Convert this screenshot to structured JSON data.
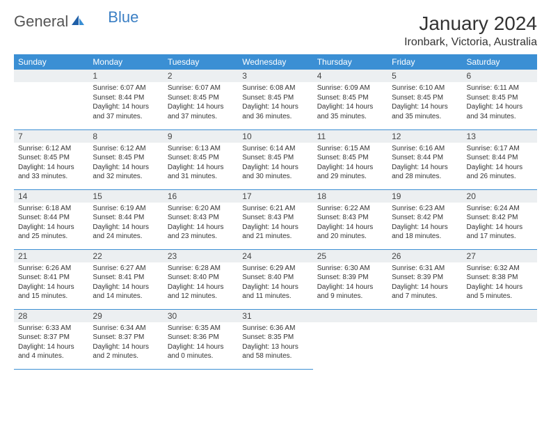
{
  "logo": {
    "general": "General",
    "blue": "Blue"
  },
  "title": "January 2024",
  "location": "Ironbark, Victoria, Australia",
  "colors": {
    "header_bg": "#3b8fd4",
    "header_text": "#ffffff",
    "daynum_bg": "#eceff1",
    "border": "#3b8fd4",
    "logo_blue": "#3b7fc4"
  },
  "weekdays": [
    "Sunday",
    "Monday",
    "Tuesday",
    "Wednesday",
    "Thursday",
    "Friday",
    "Saturday"
  ],
  "weeks": [
    [
      null,
      {
        "n": "1",
        "sr": "Sunrise: 6:07 AM",
        "ss": "Sunset: 8:44 PM",
        "dl": "Daylight: 14 hours and 37 minutes."
      },
      {
        "n": "2",
        "sr": "Sunrise: 6:07 AM",
        "ss": "Sunset: 8:45 PM",
        "dl": "Daylight: 14 hours and 37 minutes."
      },
      {
        "n": "3",
        "sr": "Sunrise: 6:08 AM",
        "ss": "Sunset: 8:45 PM",
        "dl": "Daylight: 14 hours and 36 minutes."
      },
      {
        "n": "4",
        "sr": "Sunrise: 6:09 AM",
        "ss": "Sunset: 8:45 PM",
        "dl": "Daylight: 14 hours and 35 minutes."
      },
      {
        "n": "5",
        "sr": "Sunrise: 6:10 AM",
        "ss": "Sunset: 8:45 PM",
        "dl": "Daylight: 14 hours and 35 minutes."
      },
      {
        "n": "6",
        "sr": "Sunrise: 6:11 AM",
        "ss": "Sunset: 8:45 PM",
        "dl": "Daylight: 14 hours and 34 minutes."
      }
    ],
    [
      {
        "n": "7",
        "sr": "Sunrise: 6:12 AM",
        "ss": "Sunset: 8:45 PM",
        "dl": "Daylight: 14 hours and 33 minutes."
      },
      {
        "n": "8",
        "sr": "Sunrise: 6:12 AM",
        "ss": "Sunset: 8:45 PM",
        "dl": "Daylight: 14 hours and 32 minutes."
      },
      {
        "n": "9",
        "sr": "Sunrise: 6:13 AM",
        "ss": "Sunset: 8:45 PM",
        "dl": "Daylight: 14 hours and 31 minutes."
      },
      {
        "n": "10",
        "sr": "Sunrise: 6:14 AM",
        "ss": "Sunset: 8:45 PM",
        "dl": "Daylight: 14 hours and 30 minutes."
      },
      {
        "n": "11",
        "sr": "Sunrise: 6:15 AM",
        "ss": "Sunset: 8:45 PM",
        "dl": "Daylight: 14 hours and 29 minutes."
      },
      {
        "n": "12",
        "sr": "Sunrise: 6:16 AM",
        "ss": "Sunset: 8:44 PM",
        "dl": "Daylight: 14 hours and 28 minutes."
      },
      {
        "n": "13",
        "sr": "Sunrise: 6:17 AM",
        "ss": "Sunset: 8:44 PM",
        "dl": "Daylight: 14 hours and 26 minutes."
      }
    ],
    [
      {
        "n": "14",
        "sr": "Sunrise: 6:18 AM",
        "ss": "Sunset: 8:44 PM",
        "dl": "Daylight: 14 hours and 25 minutes."
      },
      {
        "n": "15",
        "sr": "Sunrise: 6:19 AM",
        "ss": "Sunset: 8:44 PM",
        "dl": "Daylight: 14 hours and 24 minutes."
      },
      {
        "n": "16",
        "sr": "Sunrise: 6:20 AM",
        "ss": "Sunset: 8:43 PM",
        "dl": "Daylight: 14 hours and 23 minutes."
      },
      {
        "n": "17",
        "sr": "Sunrise: 6:21 AM",
        "ss": "Sunset: 8:43 PM",
        "dl": "Daylight: 14 hours and 21 minutes."
      },
      {
        "n": "18",
        "sr": "Sunrise: 6:22 AM",
        "ss": "Sunset: 8:43 PM",
        "dl": "Daylight: 14 hours and 20 minutes."
      },
      {
        "n": "19",
        "sr": "Sunrise: 6:23 AM",
        "ss": "Sunset: 8:42 PM",
        "dl": "Daylight: 14 hours and 18 minutes."
      },
      {
        "n": "20",
        "sr": "Sunrise: 6:24 AM",
        "ss": "Sunset: 8:42 PM",
        "dl": "Daylight: 14 hours and 17 minutes."
      }
    ],
    [
      {
        "n": "21",
        "sr": "Sunrise: 6:26 AM",
        "ss": "Sunset: 8:41 PM",
        "dl": "Daylight: 14 hours and 15 minutes."
      },
      {
        "n": "22",
        "sr": "Sunrise: 6:27 AM",
        "ss": "Sunset: 8:41 PM",
        "dl": "Daylight: 14 hours and 14 minutes."
      },
      {
        "n": "23",
        "sr": "Sunrise: 6:28 AM",
        "ss": "Sunset: 8:40 PM",
        "dl": "Daylight: 14 hours and 12 minutes."
      },
      {
        "n": "24",
        "sr": "Sunrise: 6:29 AM",
        "ss": "Sunset: 8:40 PM",
        "dl": "Daylight: 14 hours and 11 minutes."
      },
      {
        "n": "25",
        "sr": "Sunrise: 6:30 AM",
        "ss": "Sunset: 8:39 PM",
        "dl": "Daylight: 14 hours and 9 minutes."
      },
      {
        "n": "26",
        "sr": "Sunrise: 6:31 AM",
        "ss": "Sunset: 8:39 PM",
        "dl": "Daylight: 14 hours and 7 minutes."
      },
      {
        "n": "27",
        "sr": "Sunrise: 6:32 AM",
        "ss": "Sunset: 8:38 PM",
        "dl": "Daylight: 14 hours and 5 minutes."
      }
    ],
    [
      {
        "n": "28",
        "sr": "Sunrise: 6:33 AM",
        "ss": "Sunset: 8:37 PM",
        "dl": "Daylight: 14 hours and 4 minutes."
      },
      {
        "n": "29",
        "sr": "Sunrise: 6:34 AM",
        "ss": "Sunset: 8:37 PM",
        "dl": "Daylight: 14 hours and 2 minutes."
      },
      {
        "n": "30",
        "sr": "Sunrise: 6:35 AM",
        "ss": "Sunset: 8:36 PM",
        "dl": "Daylight: 14 hours and 0 minutes."
      },
      {
        "n": "31",
        "sr": "Sunrise: 6:36 AM",
        "ss": "Sunset: 8:35 PM",
        "dl": "Daylight: 13 hours and 58 minutes."
      },
      null,
      null,
      null
    ]
  ]
}
